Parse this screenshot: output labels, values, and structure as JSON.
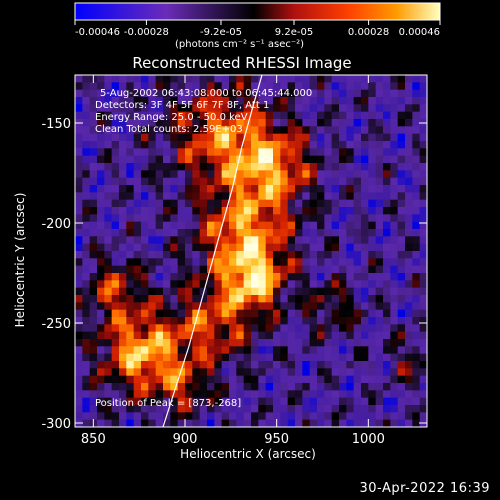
{
  "colorbar": {
    "ticks": [
      "-0.00046",
      "-0.00028",
      "-9.2e-05",
      "9.2e-05",
      "0.00028",
      "0.00046"
    ],
    "tick_values": [
      -0.00046,
      -0.00028,
      -9.2e-05,
      9.2e-05,
      0.00028,
      0.00046
    ],
    "range": [
      -0.00046,
      0.00046
    ],
    "unit_label": "(photons cm⁻² s⁻¹ asec⁻²)"
  },
  "image": {
    "title": "Reconstructed RHESSI Image",
    "info_lines": [
      "5-Aug-2002 06:43:08.000 to 06:45:44.000",
      "Detectors: 3F 4F 5F 6F 7F 8F, Att 1",
      "Energy Range: 25.0 - 50.0 keV",
      "Clean    Total counts: 2.59E+03"
    ],
    "peak_label": "Position of Peak = [873,-268]"
  },
  "footer": {
    "timestamp": "30-Apr-2022 16:39"
  },
  "chart_data": {
    "type": "heatmap",
    "title": "Reconstructed RHESSI Image",
    "xlabel": "Heliocentric X (arcsec)",
    "ylabel": "Heliocentric Y (arcsec)",
    "xlim": [
      840,
      1032
    ],
    "ylim": [
      -302,
      -126
    ],
    "xticks": [
      850,
      900,
      950,
      1000
    ],
    "yticks": [
      -150,
      -200,
      -250,
      -300
    ],
    "colormap": [
      "#0000ff",
      "#6a2cb8",
      "#000000",
      "#b01010",
      "#ff4000",
      "#ff9a00",
      "#ffff40",
      "#ffffff"
    ],
    "peak": [
      873,
      -268
    ],
    "limb_curve": {
      "x": [
        888,
        895,
        902,
        908,
        914,
        920,
        926,
        931,
        937,
        942
      ],
      "y": [
        -302,
        -282,
        -262,
        -242,
        -222,
        -202,
        -182,
        -162,
        -142,
        -126
      ]
    }
  }
}
